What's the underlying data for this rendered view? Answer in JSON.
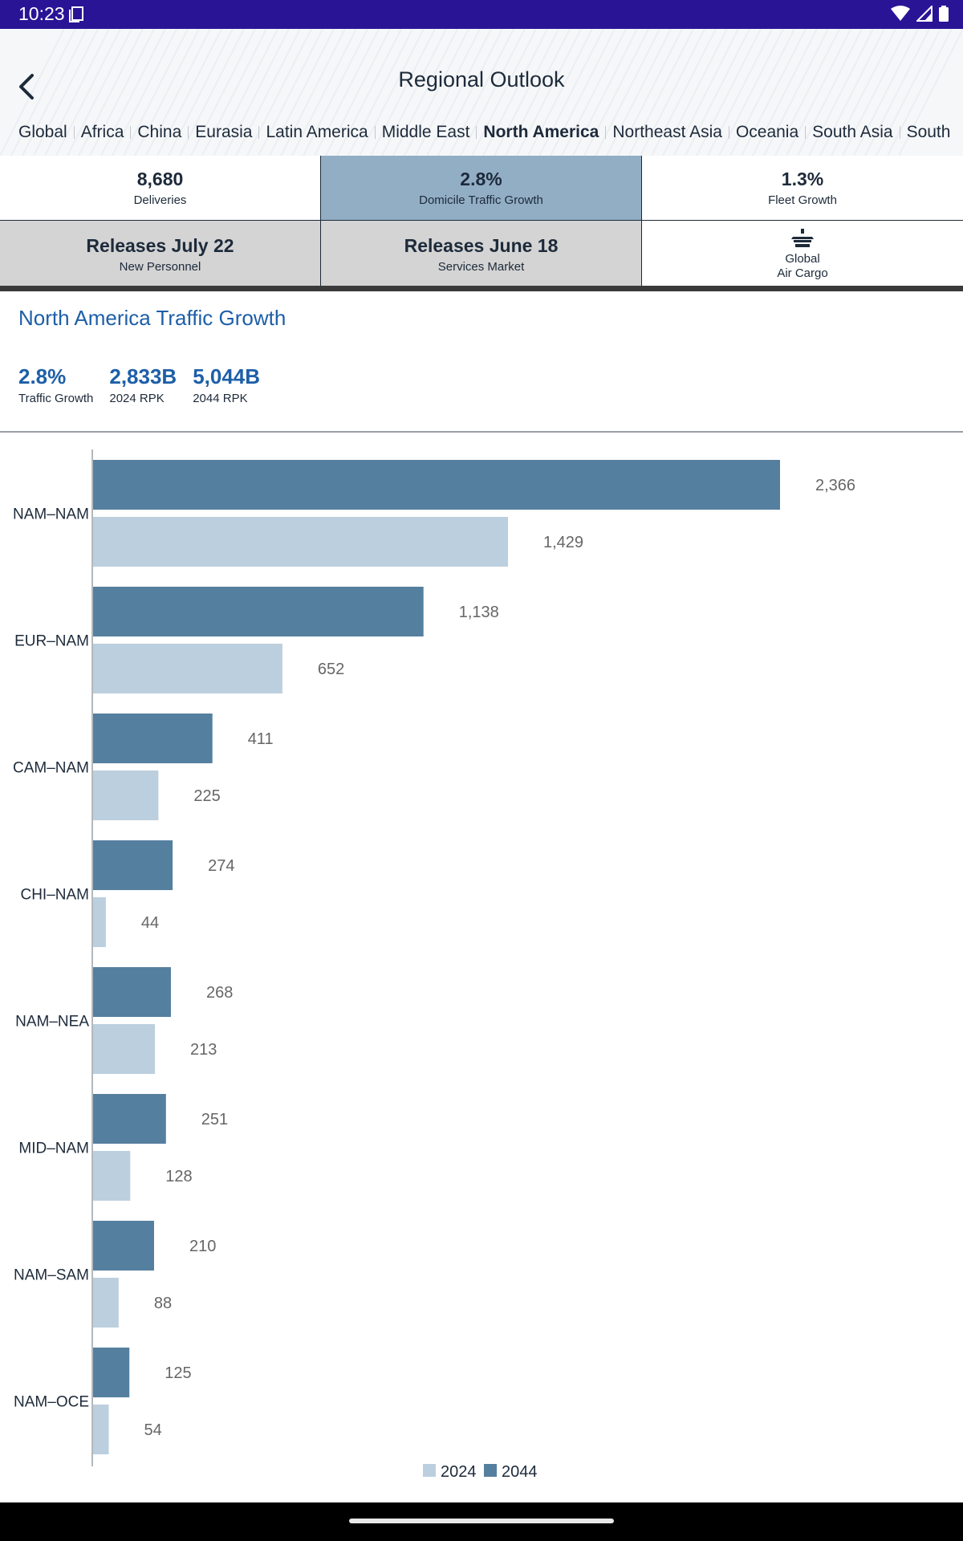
{
  "status_bar": {
    "time": "10:23"
  },
  "header": {
    "title": "Regional Outlook",
    "region_tabs": [
      "Global",
      "Africa",
      "China",
      "Eurasia",
      "Latin America",
      "Middle East",
      "North America",
      "Northeast Asia",
      "Oceania",
      "South Asia",
      "South"
    ],
    "active_tab": "North America"
  },
  "metrics": {
    "deliveries": {
      "value": "8,680",
      "label": "Deliveries"
    },
    "traffic": {
      "value": "2.8%",
      "label": "Domicile Traffic Growth"
    },
    "fleet": {
      "value": "1.3%",
      "label": "Fleet Growth"
    },
    "personnel": {
      "value": "Releases July 22",
      "label": "New Personnel"
    },
    "services": {
      "value": "Releases June 18",
      "label": "Services Market"
    },
    "cargo": {
      "line1": "Global",
      "line2": "Air Cargo",
      "icon": "airplane-icon"
    }
  },
  "section": {
    "title": "North America Traffic Growth",
    "stats": [
      {
        "value": "2.8%",
        "label": "Traffic Growth"
      },
      {
        "value": "2,833B",
        "label": "2024 RPK"
      },
      {
        "value": "5,044B",
        "label": "2044 RPK"
      }
    ]
  },
  "colors": {
    "accent": "#1d5fa8",
    "status_bar": "#2a1496",
    "bar_2044": "#557f9f",
    "bar_2024": "#bccfde",
    "selected_cell": "#92aec5"
  },
  "chart_data": {
    "type": "bar",
    "orientation": "horizontal",
    "categories": [
      "NAM–NAM",
      "EUR–NAM",
      "CAM–NAM",
      "CHI–NAM",
      "NAM–NEA",
      "MID–NAM",
      "NAM–SAM",
      "NAM–OCE"
    ],
    "series": [
      {
        "name": "2044",
        "values": [
          2366,
          1138,
          411,
          274,
          268,
          251,
          210,
          125
        ],
        "labels": [
          "2,366",
          "1,138",
          "411",
          "274",
          "268",
          "251",
          "210",
          "125"
        ]
      },
      {
        "name": "2024",
        "values": [
          1429,
          652,
          225,
          44,
          213,
          128,
          88,
          54
        ],
        "labels": [
          "1,429",
          "652",
          "225",
          "44",
          "213",
          "128",
          "88",
          "54"
        ]
      }
    ],
    "legend": [
      "2024",
      "2044"
    ],
    "legend_position": "bottom-center",
    "xlim": [
      0,
      2366
    ],
    "grid": false
  }
}
